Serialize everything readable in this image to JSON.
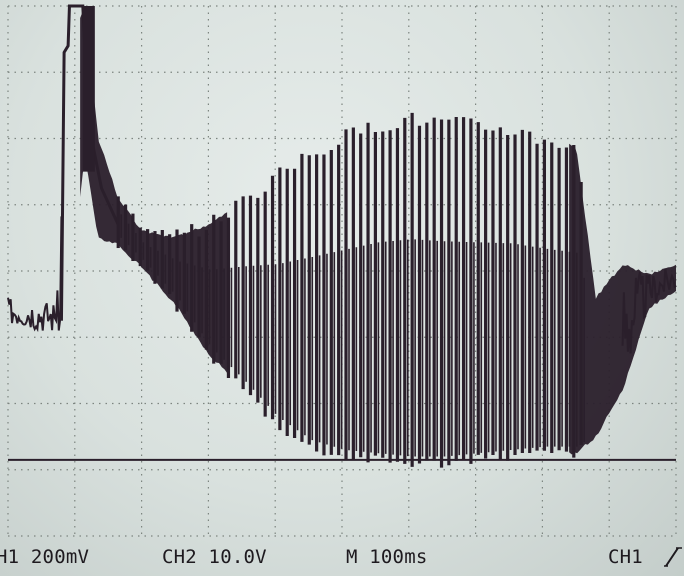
{
  "status_bar": {
    "ch1_scale": "H1 200mV",
    "ch2_scale": "CH2  10.0V",
    "timebase": "M 100ms",
    "trigger_source": "CH1"
  },
  "colors": {
    "trace": "#2a1f2b",
    "grid": "#7d8580",
    "screen_bg": "#dde4e1"
  },
  "chart_data": {
    "type": "line",
    "title": "",
    "xlabel": "",
    "ylabel": "",
    "grid": true,
    "x_divisions": 10,
    "y_divisions": 8,
    "xlim": [
      0,
      1000
    ],
    "ylim": [
      -0.8,
      0.8
    ],
    "ground_level": -0.57,
    "series": [
      {
        "samples": [
          {
            "t": 0,
            "min": -0.16,
            "max": -0.08
          },
          {
            "t": 70,
            "min": -0.19,
            "max": -0.09
          },
          {
            "t": 85,
            "min": -0.18,
            "max": 0.66
          },
          {
            "t": 115,
            "min": 0.35,
            "max": 0.8
          },
          {
            "t": 135,
            "min": 0.1,
            "max": 0.4
          },
          {
            "t": 165,
            "min": 0.08,
            "max": 0.22
          },
          {
            "t": 200,
            "min": 0.01,
            "max": 0.12
          },
          {
            "t": 250,
            "min": -0.1,
            "max": 0.1
          },
          {
            "t": 300,
            "min": -0.25,
            "max": 0.14
          },
          {
            "t": 350,
            "min": -0.35,
            "max": 0.21
          },
          {
            "t": 400,
            "min": -0.46,
            "max": 0.28
          },
          {
            "t": 450,
            "min": -0.53,
            "max": 0.35
          },
          {
            "t": 500,
            "min": -0.56,
            "max": 0.4
          },
          {
            "t": 550,
            "min": -0.57,
            "max": 0.44
          },
          {
            "t": 600,
            "min": -0.58,
            "max": 0.46
          },
          {
            "t": 650,
            "min": -0.58,
            "max": 0.45
          },
          {
            "t": 700,
            "min": -0.57,
            "max": 0.44
          },
          {
            "t": 750,
            "min": -0.56,
            "max": 0.43
          },
          {
            "t": 800,
            "min": -0.55,
            "max": 0.4
          },
          {
            "t": 850,
            "min": -0.55,
            "max": 0.38
          },
          {
            "t": 880,
            "min": -0.5,
            "max": -0.08
          },
          {
            "t": 920,
            "min": -0.36,
            "max": 0.02
          },
          {
            "t": 960,
            "min": -0.11,
            "max": -0.01
          },
          {
            "t": 1000,
            "min": -0.06,
            "max": 0.02
          }
        ]
      }
    ]
  }
}
